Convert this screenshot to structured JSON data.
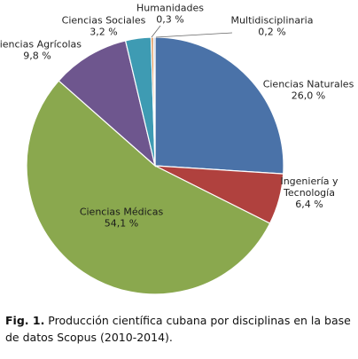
{
  "chart_data": {
    "type": "pie",
    "start_angle_deg": 0,
    "direction": "clockwise",
    "slices": [
      {
        "name": "Ciencias Naturales",
        "value": 26.0,
        "label": "26,0 %",
        "color": "#4A72A8"
      },
      {
        "name": "Ingeniería y Tecnología",
        "value": 6.4,
        "label": "6,4 %",
        "color": "#B0413E"
      },
      {
        "name": "Ciencias Médicas",
        "value": 54.1,
        "label": "54,1 %",
        "color": "#8AA84E"
      },
      {
        "name": "Ciencias Agrícolas",
        "value": 9.8,
        "label": "9,8 %",
        "color": "#6E568E"
      },
      {
        "name": "Ciencias Sociales",
        "value": 3.2,
        "label": "3,2 %",
        "color": "#3E9BB3"
      },
      {
        "name": "Humanidades",
        "value": 0.3,
        "label": "0,3 %",
        "color": "#D8823A"
      },
      {
        "name": "Multidisciplinaria",
        "value": 0.2,
        "label": "0,2 %",
        "color": "#9DB0D4"
      }
    ],
    "label_lines": [
      {
        "slice": 0,
        "lines": [
          "Ciencias Naturales",
          "26,0 %"
        ]
      },
      {
        "slice": 1,
        "lines": [
          "Ingeniería y",
          "Tecnología",
          "6,4 %"
        ]
      },
      {
        "slice": 2,
        "lines": [
          "Ciencias Médicas",
          "54,1 %"
        ]
      },
      {
        "slice": 3,
        "lines": [
          "Ciencias Agrícolas",
          "9,8 %"
        ]
      },
      {
        "slice": 4,
        "lines": [
          "Ciencias Sociales",
          "3,2 %"
        ]
      },
      {
        "slice": 5,
        "lines": [
          "Humanidades",
          "0,3 %"
        ]
      },
      {
        "slice": 6,
        "lines": [
          "Multidisciplinaria",
          "0,2 %"
        ]
      }
    ]
  },
  "caption": {
    "label": "Fig. 1.",
    "text": " Producción científica cubana por disciplinas en la base de datos Scopus (2010-2014)."
  }
}
